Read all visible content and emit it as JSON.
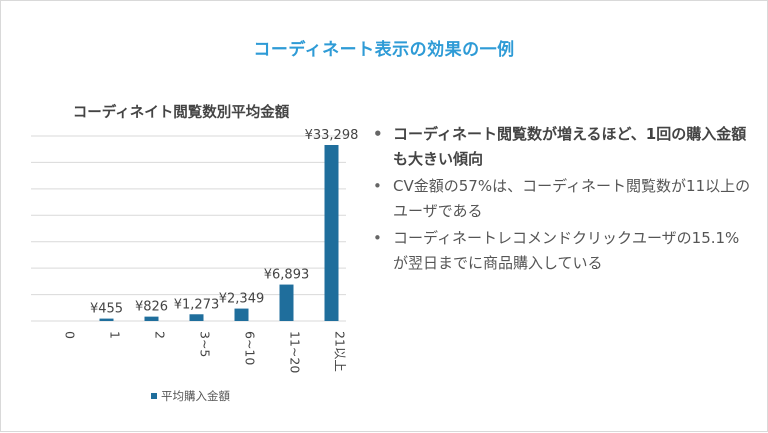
{
  "slide": {
    "title": "コーディネート表示の効果の一例"
  },
  "bullets": [
    {
      "text": "コーディネート閲覧数が増えるほど、1回の購入金額も大きい傾向",
      "bold": true
    },
    {
      "text": "CV金額の57%は、コーディネート閲覧数が11以上のユーザである",
      "bold": false
    },
    {
      "text": "コーディネートレコメンドクリックユーザの15.1%が翌日までに商品購入している",
      "bold": false
    }
  ],
  "bullet_glyph": "•",
  "colors": {
    "bar": "#1f6e9c",
    "title": "#2e9bd6",
    "grid": "#d9d9d9"
  },
  "chart_data": {
    "type": "bar",
    "title": "コーディネイト閲覧数別平均金額",
    "categories": [
      "0",
      "1",
      "2",
      "3~5",
      "6~10",
      "11~20",
      "21以上"
    ],
    "series": [
      {
        "name": "平均購入金額",
        "values": [
          0,
          455,
          826,
          1273,
          2349,
          6893,
          33298
        ]
      }
    ],
    "data_labels": [
      "",
      "¥455",
      "¥826",
      "¥1,273",
      "¥2,349",
      "¥6,893",
      "¥33,298"
    ],
    "ylim": [
      0,
      35000
    ],
    "grid": true,
    "legend": "bottom"
  }
}
